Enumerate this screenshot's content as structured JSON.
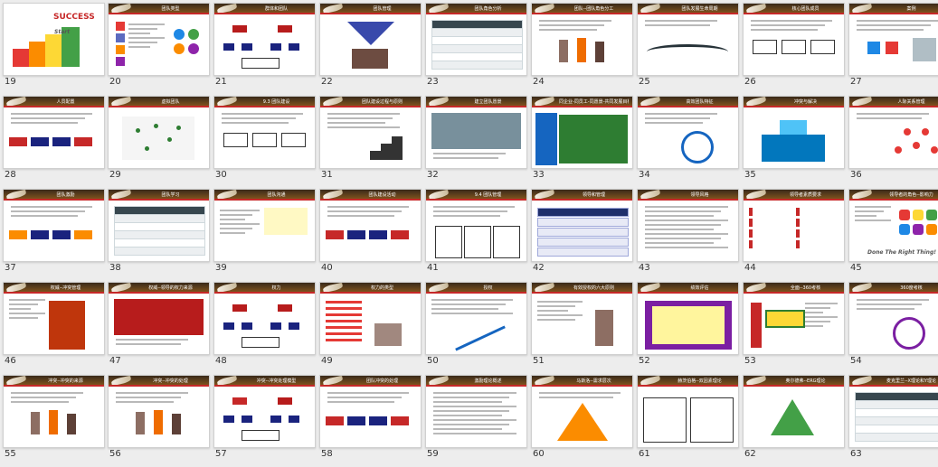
{
  "slides": [
    {
      "number": "19",
      "title": "",
      "style": "success"
    },
    {
      "number": "20",
      "title": "团队类型",
      "style": "grid4"
    },
    {
      "number": "21",
      "title": "群体和团队",
      "style": "org"
    },
    {
      "number": "22",
      "title": "团队管理",
      "style": "pyramid-photo"
    },
    {
      "number": "23",
      "title": "团队角色分析",
      "style": "table"
    },
    {
      "number": "24",
      "title": "团队--团队角色分工",
      "style": "people"
    },
    {
      "number": "25",
      "title": "团队发展生命周期",
      "style": "curve"
    },
    {
      "number": "26",
      "title": "核心团队成员",
      "style": "boxes"
    },
    {
      "number": "27",
      "title": "案例",
      "style": "icons"
    },
    {
      "number": "28",
      "title": "人员配置",
      "style": "flow"
    },
    {
      "number": "29",
      "title": "虚拟团队",
      "style": "map"
    },
    {
      "number": "30",
      "title": "9.3 团队建设",
      "style": "boxes3"
    },
    {
      "number": "31",
      "title": "团队建设过程与原则",
      "style": "stairs"
    },
    {
      "number": "32",
      "title": "建立团队愿景",
      "style": "photo"
    },
    {
      "number": "33",
      "title": "同企业-同员工-同愿景-共同发展目标",
      "style": "green"
    },
    {
      "number": "34",
      "title": "高效团队特征",
      "style": "wheel"
    },
    {
      "number": "35",
      "title": "冲突与解决",
      "style": "iceberg"
    },
    {
      "number": "36",
      "title": "人际关系管理",
      "style": "network"
    },
    {
      "number": "37",
      "title": "团队激励",
      "style": "orangeflow"
    },
    {
      "number": "38",
      "title": "团队学习",
      "style": "table"
    },
    {
      "number": "39",
      "title": "团队沟通",
      "style": "chart"
    },
    {
      "number": "40",
      "title": "团队建设活动",
      "style": "path"
    },
    {
      "number": "41",
      "title": "9.4 团队管理",
      "style": "cols"
    },
    {
      "number": "42",
      "title": "领导和管理",
      "style": "navybar"
    },
    {
      "number": "43",
      "title": "领导风格",
      "style": "text"
    },
    {
      "number": "44",
      "title": "领导者素质要求",
      "style": "redlist"
    },
    {
      "number": "45",
      "title": "领导者的角色--影响力",
      "style": "hex"
    },
    {
      "number": "46",
      "title": "权威--冲突管理",
      "style": "book"
    },
    {
      "number": "47",
      "title": "权威--领导的权力来源",
      "style": "redphoto"
    },
    {
      "number": "48",
      "title": "权力",
      "style": "tree"
    },
    {
      "number": "49",
      "title": "权力的类型",
      "style": "redtext"
    },
    {
      "number": "50",
      "title": "授权",
      "style": "arrowchart"
    },
    {
      "number": "51",
      "title": "有效授权的六大原则",
      "style": "climb"
    },
    {
      "number": "52",
      "title": "绩效评估",
      "style": "purple"
    },
    {
      "number": "53",
      "title": "全面--360考核",
      "style": "greenbox"
    },
    {
      "number": "54",
      "title": "360度考核",
      "style": "cycle"
    },
    {
      "number": "55",
      "title": "冲突--冲突的来源",
      "style": "figures"
    },
    {
      "number": "56",
      "title": "冲突--冲突的处理",
      "style": "figures2"
    },
    {
      "number": "57",
      "title": "冲突--冲突处理模型",
      "style": "redtree"
    },
    {
      "number": "58",
      "title": "团队冲突的处理",
      "style": "redflow"
    },
    {
      "number": "59",
      "title": "激励理论概述",
      "style": "text"
    },
    {
      "number": "60",
      "title": "马斯洛--需求层次",
      "style": "maslow"
    },
    {
      "number": "61",
      "title": "赫茨伯格--双因素理论",
      "style": "twolist"
    },
    {
      "number": "62",
      "title": "奥尔德弗--ERG理论",
      "style": "erg"
    },
    {
      "number": "63",
      "title": "麦克里兰--X理论和Y理论",
      "style": "table2"
    }
  ],
  "slide19": {
    "big": "SUCCESS",
    "small": "Start"
  },
  "slide45": {
    "tagline": "Done The Right Thing!"
  },
  "colors": {
    "header": "#3a2a1a",
    "accent": "#c62828",
    "navy": "#1f2f6b"
  }
}
